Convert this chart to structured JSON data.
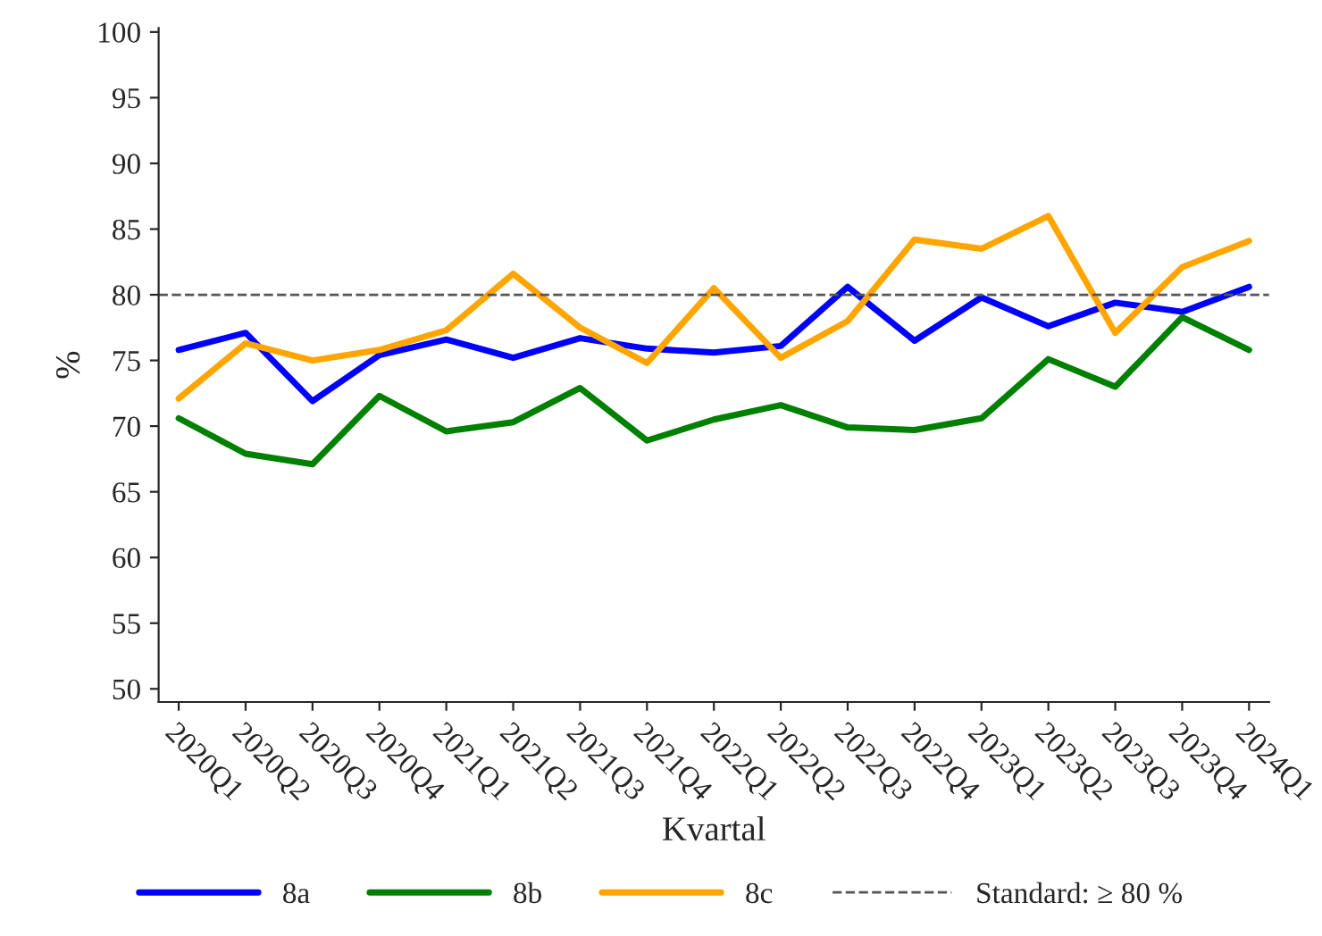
{
  "chart_data": {
    "type": "line",
    "xlabel": "Kvartal",
    "ylabel": "%",
    "categories": [
      "2020Q1",
      "2020Q2",
      "2020Q3",
      "2020Q4",
      "2021Q1",
      "2021Q2",
      "2021Q3",
      "2021Q4",
      "2022Q1",
      "2022Q2",
      "2022Q3",
      "2022Q4",
      "2023Q1",
      "2023Q2",
      "2023Q3",
      "2023Q4",
      "2024Q1"
    ],
    "series": [
      {
        "name": "8a",
        "color": "#0000ff",
        "values": [
          75.8,
          77.1,
          71.9,
          75.4,
          76.6,
          75.2,
          76.7,
          75.9,
          75.6,
          76.1,
          80.6,
          76.5,
          79.8,
          77.6,
          79.4,
          78.7,
          80.6
        ]
      },
      {
        "name": "8b",
        "color": "#008000",
        "values": [
          70.6,
          67.9,
          67.1,
          72.3,
          69.6,
          70.3,
          72.9,
          68.9,
          70.5,
          71.6,
          69.9,
          69.7,
          70.6,
          75.1,
          73.0,
          78.3,
          75.8
        ]
      },
      {
        "name": "8c",
        "color": "#ffa500",
        "values": [
          72.1,
          76.3,
          75.0,
          75.8,
          77.3,
          81.6,
          77.5,
          74.8,
          80.5,
          75.2,
          78.0,
          84.2,
          83.5,
          86.0,
          77.1,
          82.1,
          84.1
        ]
      }
    ],
    "ref_lines": [
      {
        "axis": "y",
        "value": 80,
        "label": "Standard: ≥ 80 %",
        "color": "#555555",
        "line_style": "dashed"
      }
    ],
    "ylim": [
      49,
      100.3
    ],
    "yticks": [
      50,
      55,
      60,
      65,
      70,
      75,
      80,
      85,
      90,
      95,
      100
    ],
    "grid": false,
    "legend": "bottom",
    "marker": "none",
    "line_style": "solid"
  }
}
